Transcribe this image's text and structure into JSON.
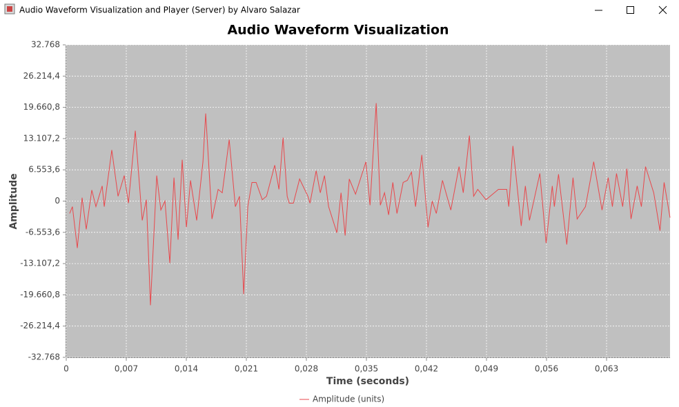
{
  "window": {
    "title": "Audio Waveform Visualization and Player (Server) by Alvaro Salazar"
  },
  "chart_data": {
    "type": "line",
    "title": "Audio Waveform Visualization",
    "x_label": "Time (seconds)",
    "y_label": "Amplitude",
    "xlim": [
      0,
      0.0704
    ],
    "ylim": [
      -32768,
      32768
    ],
    "grid": true,
    "legend": "bottom",
    "xticks": [
      0,
      {
        "value": 0.007,
        "label": "0,007"
      },
      {
        "value": 0.014,
        "label": "0,014"
      },
      {
        "value": 0.021,
        "label": "0,021"
      },
      {
        "value": 0.028,
        "label": "0,028"
      },
      {
        "value": 0.035,
        "label": "0,035"
      },
      {
        "value": 0.042,
        "label": "0,042"
      },
      {
        "value": 0.049,
        "label": "0,049"
      },
      {
        "value": 0.056,
        "label": "0,056"
      },
      {
        "value": 0.063,
        "label": "0,063"
      }
    ],
    "yticks": [
      {
        "value": -32768,
        "label": "-32.768"
      },
      {
        "value": -26214.4,
        "label": "-26.214,4"
      },
      {
        "value": -19660.8,
        "label": "-19.660,8"
      },
      {
        "value": -13107.2,
        "label": "-13.107,2"
      },
      {
        "value": -6553.6,
        "label": "-6.553,6"
      },
      0,
      {
        "value": 6553.6,
        "label": "6.553,6"
      },
      {
        "value": 13107.2,
        "label": "13.107,2"
      },
      {
        "value": 19660.8,
        "label": "19.660,8"
      },
      {
        "value": 26214.4,
        "label": "26.214,4"
      },
      {
        "value": 32768,
        "label": "32.768"
      }
    ],
    "x": [
      0.0004,
      0.00072,
      0.00129,
      0.00185,
      0.00233,
      0.00298,
      0.00346,
      0.00419,
      0.00443,
      0.00531,
      0.00604,
      0.00676,
      0.00725,
      0.00805,
      0.00886,
      0.00934,
      0.00982,
      0.01055,
      0.01103,
      0.01151,
      0.01208,
      0.01256,
      0.01304,
      0.01352,
      0.01401,
      0.01449,
      0.01521,
      0.01594,
      0.01626,
      0.01699,
      0.01771,
      0.01819,
      0.019,
      0.01972,
      0.0202,
      0.02069,
      0.02117,
      0.02165,
      0.02214,
      0.02286,
      0.02335,
      0.02431,
      0.0248,
      0.02528,
      0.02576,
      0.026,
      0.02648,
      0.02721,
      0.02818,
      0.02842,
      0.02914,
      0.02962,
      0.03011,
      0.03059,
      0.03156,
      0.03204,
      0.03252,
      0.033,
      0.03373,
      0.03494,
      0.03542,
      0.03614,
      0.03662,
      0.03711,
      0.03759,
      0.03808,
      0.03856,
      0.03928,
      0.03977,
      0.04025,
      0.04073,
      0.04146,
      0.04218,
      0.04267,
      0.04315,
      0.04387,
      0.04484,
      0.0458,
      0.04629,
      0.04701,
      0.0475,
      0.04798,
      0.04894,
      0.04991,
      0.05039,
      0.05136,
      0.0516,
      0.05208,
      0.05305,
      0.05353,
      0.05401,
      0.05522,
      0.05595,
      0.05667,
      0.05691,
      0.0574,
      0.05836,
      0.05909,
      0.05957,
      0.06054,
      0.0615,
      0.06247,
      0.06319,
      0.06368,
      0.06416,
      0.06488,
      0.06537,
      0.06585,
      0.06657,
      0.06706,
      0.06754,
      0.0685,
      0.06923,
      0.06971,
      0.0704
    ],
    "series": [
      {
        "name": "Amplitude (units)",
        "color": "#e8474b",
        "values": [
          -2600,
          -1160,
          -9840,
          720,
          -5930,
          2310,
          -1160,
          3180,
          -1160,
          10710,
          1010,
          5350,
          -430,
          14760,
          -4050,
          290,
          -21850,
          5350,
          -1880,
          0,
          -13020,
          4920,
          -8100,
          8680,
          -5500,
          4340,
          -4050,
          8250,
          18370,
          -3760,
          2460,
          1740,
          12880,
          -1160,
          1010,
          -19530,
          -1160,
          3910,
          3910,
          290,
          1010,
          7520,
          2460,
          13310,
          1010,
          -430,
          -430,
          4630,
          1010,
          -430,
          6370,
          1740,
          5350,
          -1160,
          -6650,
          1740,
          -7230,
          4630,
          1450,
          8250,
          -870,
          20540,
          -870,
          1740,
          -2890,
          3910,
          -2600,
          3910,
          4340,
          6080,
          -1160,
          9690,
          -5500,
          0,
          -2600,
          4340,
          -1880,
          7230,
          1740,
          13740,
          1010,
          2460,
          290,
          1740,
          2460,
          2460,
          -1160,
          11570,
          -5210,
          3180,
          -4050,
          5790,
          -8820,
          3180,
          -1160,
          5640,
          -9110,
          4920,
          -3760,
          -1160,
          8250,
          -1880,
          4920,
          -1160,
          5790,
          -1160,
          6800,
          -3760,
          3180,
          -1160,
          7230,
          1740,
          -6220,
          3910,
          -3470
        ]
      }
    ]
  }
}
